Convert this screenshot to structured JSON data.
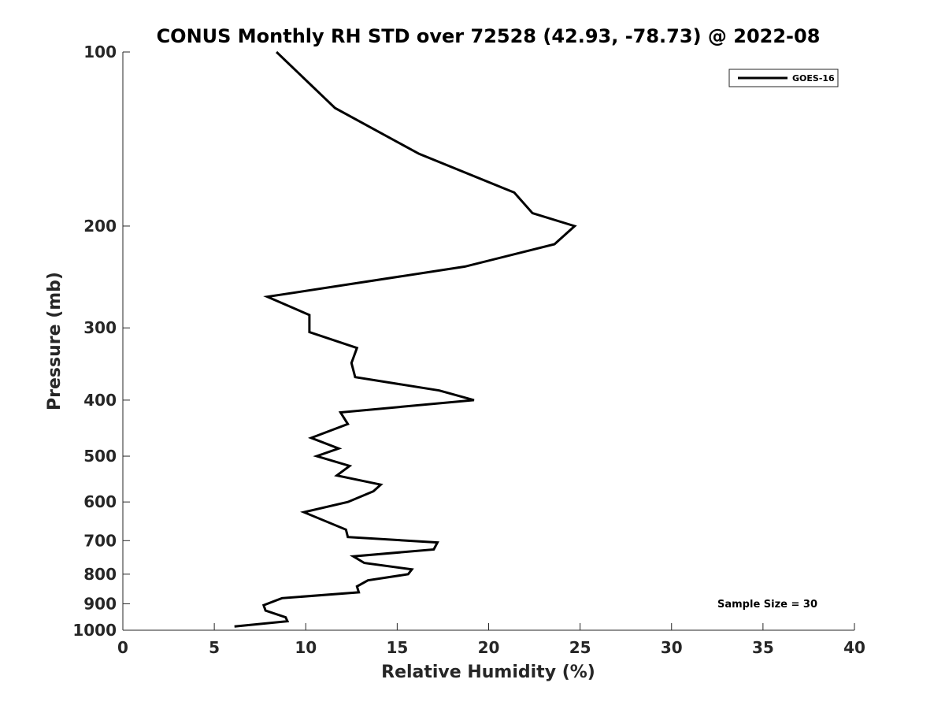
{
  "chart_data": {
    "type": "line",
    "title": "CONUS Monthly RH STD over 72528 (42.93, -78.73) @ 2022-08",
    "xlabel": "Relative Humidity (%)",
    "ylabel": "Pressure (mb)",
    "xlim": [
      0,
      40
    ],
    "ylim": [
      100,
      1000
    ],
    "y_scale": "log",
    "y_reversed": true,
    "x_ticks": [
      "0",
      "5",
      "10",
      "15",
      "20",
      "25",
      "30",
      "35",
      "40"
    ],
    "y_ticks": [
      "100",
      "200",
      "300",
      "400",
      "500",
      "600",
      "700",
      "800",
      "900",
      "1000"
    ],
    "grid": false,
    "legend_position": "top-right",
    "annotation": "Sample Size = 30",
    "series": [
      {
        "name": "GOES-16",
        "color": "#000000",
        "points": [
          [
            8.4,
            100
          ],
          [
            11.6,
            125
          ],
          [
            16.2,
            150
          ],
          [
            21.4,
            175
          ],
          [
            22.4,
            190
          ],
          [
            24.7,
            200
          ],
          [
            23.6,
            215
          ],
          [
            18.7,
            235
          ],
          [
            7.9,
            265
          ],
          [
            10.2,
            285
          ],
          [
            10.2,
            305
          ],
          [
            12.8,
            325
          ],
          [
            12.5,
            345
          ],
          [
            12.7,
            365
          ],
          [
            17.3,
            385
          ],
          [
            19.2,
            400
          ],
          [
            11.9,
            420
          ],
          [
            12.3,
            440
          ],
          [
            10.3,
            465
          ],
          [
            11.8,
            485
          ],
          [
            10.6,
            500
          ],
          [
            12.4,
            520
          ],
          [
            11.7,
            540
          ],
          [
            14.1,
            560
          ],
          [
            13.7,
            575
          ],
          [
            12.3,
            600
          ],
          [
            9.9,
            625
          ],
          [
            12.2,
            670
          ],
          [
            12.3,
            690
          ],
          [
            17.2,
            705
          ],
          [
            17.0,
            725
          ],
          [
            12.6,
            745
          ],
          [
            13.2,
            765
          ],
          [
            15.8,
            785
          ],
          [
            15.6,
            800
          ],
          [
            13.4,
            820
          ],
          [
            12.8,
            840
          ],
          [
            12.9,
            860
          ],
          [
            8.7,
            880
          ],
          [
            7.7,
            905
          ],
          [
            7.8,
            925
          ],
          [
            8.9,
            950
          ],
          [
            9.0,
            965
          ],
          [
            6.1,
            985
          ]
        ]
      }
    ]
  }
}
